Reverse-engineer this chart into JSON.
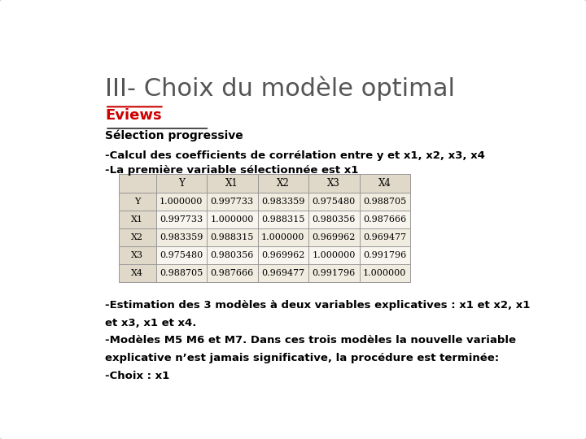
{
  "title": "III- Choix du modèle optimal",
  "subtitle": "Eviews",
  "section": "Sélection progressive",
  "line1": "-Calcul des coefficients de corrélation entre y et x1, x2, x3, x4",
  "line2": "-La première variable sélectionnée est x1",
  "table_headers": [
    "",
    "Y",
    "X1",
    "X2",
    "X3",
    "X4"
  ],
  "table_rows": [
    [
      "Y",
      "1.000000",
      "0.997733",
      "0.983359",
      "0.975480",
      "0.988705"
    ],
    [
      "X1",
      "0.997733",
      "1.000000",
      "0.988315",
      "0.980356",
      "0.987666"
    ],
    [
      "X2",
      "0.983359",
      "0.988315",
      "1.000000",
      "0.969962",
      "0.969477"
    ],
    [
      "X3",
      "0.975480",
      "0.980356",
      "0.969962",
      "1.000000",
      "0.991796"
    ],
    [
      "X4",
      "0.988705",
      "0.987666",
      "0.969477",
      "0.991796",
      "1.000000"
    ]
  ],
  "bottom_text": [
    "-Estimation des 3 modèles à deux variables explicatives : x1 et x2, x1",
    "et x3, x1 et x4.",
    "-Modèles M5 M6 et M7. Dans ces trois modèles la nouvelle variable",
    "explicative n’est jamais significative, la procédure est terminée:",
    "-Choix : x1"
  ],
  "bg_color": "#f0f0f0",
  "title_color": "#555555",
  "subtitle_color": "#cc0000",
  "text_color": "#000000",
  "table_header_bg": "#e0d8c8",
  "table_row_bg_odd": "#f0ece0",
  "table_row_bg_even": "#f8f5ee",
  "table_border_color": "#999999"
}
